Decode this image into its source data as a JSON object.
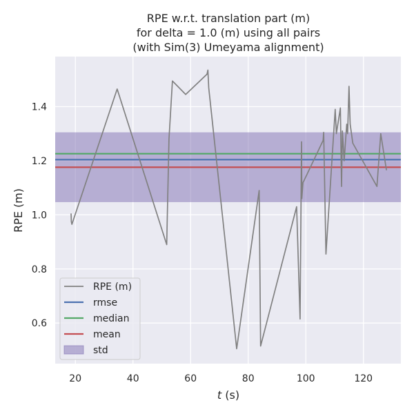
{
  "chart_data": {
    "type": "line",
    "title_lines": [
      "RPE w.r.t. translation part (m)",
      "for delta = 1.0 (m) using all pairs",
      "(with Sim(3) Umeyama alignment)"
    ],
    "xlabel_italic": "t",
    "xlabel_rest": " (s)",
    "ylabel": "RPE (m)",
    "xlim": [
      13,
      133
    ],
    "ylim": [
      0.45,
      1.585
    ],
    "xticks": [
      20,
      40,
      60,
      80,
      100,
      120
    ],
    "yticks": [
      0.6,
      0.8,
      1.0,
      1.2,
      1.4
    ],
    "ytick_labels": [
      "0.6",
      "0.8",
      "1.0",
      "1.2",
      "1.4"
    ],
    "grid": true,
    "legend_position": "lower-left",
    "series": {
      "name": "RPE (m)",
      "color": "#808080",
      "x": [
        18.5,
        18.6,
        18.8,
        34.5,
        51.7,
        52.5,
        53.7,
        58.3,
        65.7,
        66.0,
        66.3,
        76.0,
        83.8,
        84.3,
        96.8,
        98.0,
        98.5,
        98.6,
        99.0,
        99.3,
        106.0,
        106.2,
        107.0,
        110.2,
        110.6,
        112.0,
        112.4,
        112.7,
        113.3,
        114.2,
        114.5,
        115.0,
        115.4,
        116.3,
        124.7,
        126.0,
        128.0
      ],
      "y": [
        1.005,
        0.975,
        0.965,
        1.465,
        0.89,
        1.28,
        1.495,
        1.445,
        1.52,
        1.535,
        1.47,
        0.505,
        1.09,
        0.515,
        1.03,
        0.615,
        1.27,
        1.06,
        1.12,
        1.125,
        1.275,
        1.305,
        0.855,
        1.39,
        1.3,
        1.395,
        1.105,
        1.31,
        1.2,
        1.335,
        1.3,
        1.475,
        1.335,
        1.265,
        1.105,
        1.3,
        1.165
      ]
    },
    "stats": {
      "rmse": 1.204,
      "median": 1.226,
      "mean": 1.176,
      "std": 0.129
    },
    "legend": [
      {
        "label": "RPE (m)",
        "kind": "line",
        "color": "#808080"
      },
      {
        "label": "rmse",
        "kind": "line",
        "color": "#4c72b0"
      },
      {
        "label": "median",
        "kind": "line",
        "color": "#55a868"
      },
      {
        "label": "mean",
        "kind": "line",
        "color": "#c44e52"
      },
      {
        "label": "std",
        "kind": "patch",
        "color": "#8172b3"
      }
    ],
    "colors": {
      "plot_background": "#eaeaf2",
      "grid": "#ffffff",
      "rmse": "#4c72b0",
      "median": "#55a868",
      "mean": "#c44e52",
      "std": "#8172b3"
    }
  }
}
